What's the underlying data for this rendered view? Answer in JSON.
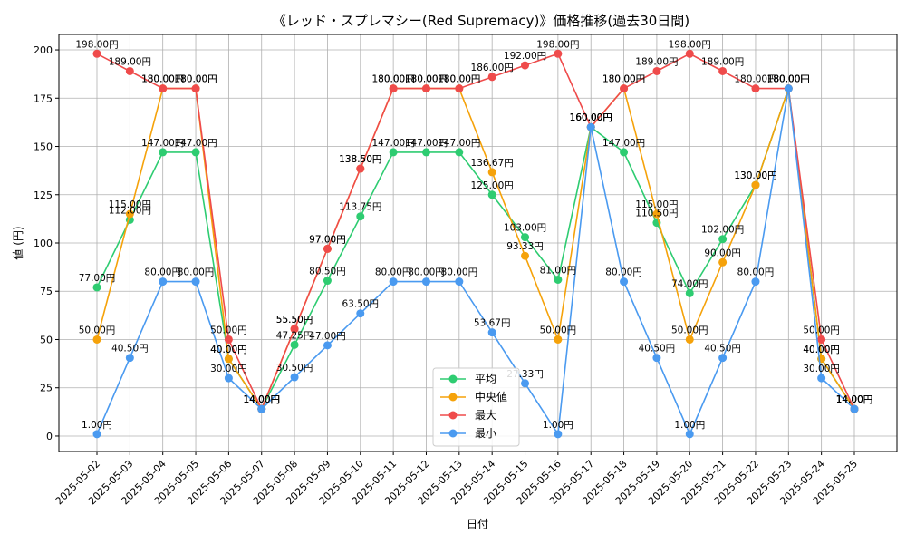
{
  "chart_data": {
    "type": "line",
    "title": "《レッド・スプレマシー(Red Supremacy)》価格推移(過去30日間)",
    "xlabel": "日付",
    "ylabel": "値 (円)",
    "ylim": [
      -8,
      208
    ],
    "yticks": [
      0,
      25,
      50,
      75,
      100,
      125,
      150,
      175,
      200
    ],
    "grid": true,
    "legend_position": "bottom-center",
    "unit_suffix": "円",
    "categories": [
      "2025-05-02",
      "2025-05-03",
      "2025-05-04",
      "2025-05-05",
      "2025-05-06",
      "2025-05-07",
      "2025-05-08",
      "2025-05-09",
      "2025-05-10",
      "2025-05-11",
      "2025-05-12",
      "2025-05-13",
      "2025-05-14",
      "2025-05-15",
      "2025-05-16",
      "2025-05-17",
      "2025-05-18",
      "2025-05-19",
      "2025-05-20",
      "2025-05-21",
      "2025-05-22",
      "2025-05-23",
      "2025-05-24",
      "2025-05-25"
    ],
    "series": [
      {
        "name": "平均",
        "color": "#2ecc71",
        "values": [
          77.0,
          112.0,
          147.0,
          147.0,
          40.0,
          14.0,
          47.25,
          80.5,
          113.75,
          147.0,
          147.0,
          147.0,
          125.0,
          103.0,
          81.0,
          160.0,
          147.0,
          110.5,
          74.0,
          102.0,
          130.0,
          180.0,
          40.0,
          14.0
        ]
      },
      {
        "name": "中央値",
        "color": "#f5a20a",
        "values": [
          50.0,
          115.0,
          180.0,
          180.0,
          40.0,
          14.0,
          55.5,
          97.0,
          138.5,
          180.0,
          180.0,
          180.0,
          136.67,
          93.33,
          50.0,
          160.0,
          180.0,
          115.0,
          50.0,
          90.0,
          130.0,
          180.0,
          40.0,
          14.0
        ]
      },
      {
        "name": "最大",
        "color": "#ef4b4b",
        "values": [
          198.0,
          189.0,
          180.0,
          180.0,
          50.0,
          14.0,
          55.5,
          97.0,
          138.5,
          180.0,
          180.0,
          180.0,
          186.0,
          192.0,
          198.0,
          160.0,
          180.0,
          189.0,
          198.0,
          189.0,
          180.0,
          180.0,
          50.0,
          14.0
        ]
      },
      {
        "name": "最小",
        "color": "#4a9af0",
        "values": [
          1.0,
          40.5,
          80.0,
          80.0,
          30.0,
          14.0,
          30.5,
          47.0,
          63.5,
          80.0,
          80.0,
          80.0,
          53.67,
          27.33,
          1.0,
          160.0,
          80.0,
          40.5,
          1.0,
          40.5,
          80.0,
          180.0,
          30.0,
          14.0
        ]
      }
    ]
  }
}
